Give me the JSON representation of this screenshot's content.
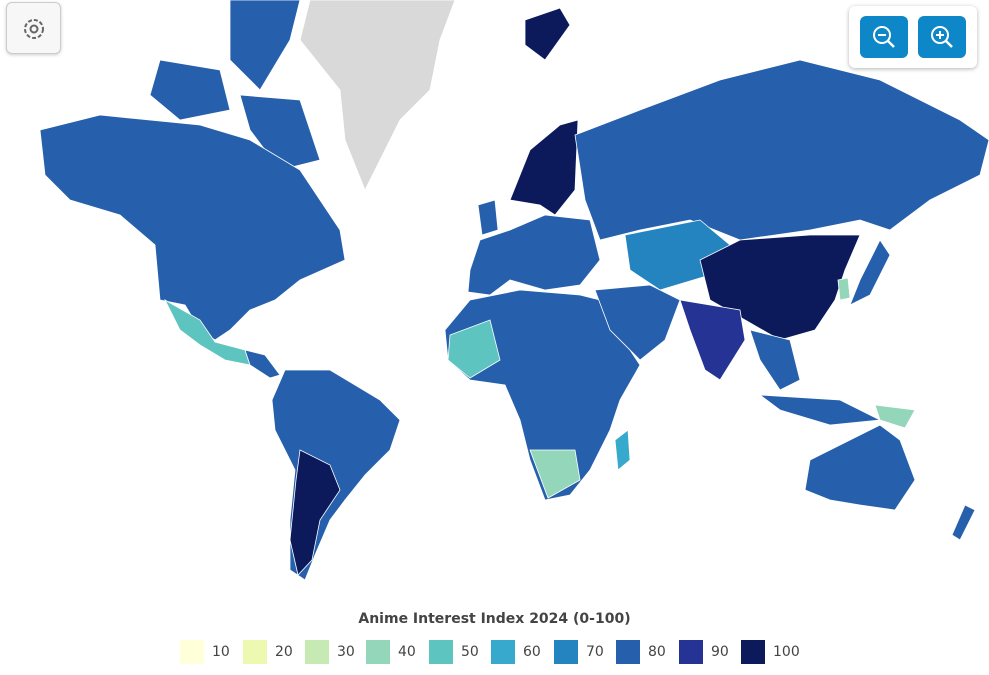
{
  "legend": {
    "title": "Anime Interest Index 2024 (0-100)",
    "items": [
      {
        "value": 10,
        "color": "#ffffd9"
      },
      {
        "value": 20,
        "color": "#edf8b1"
      },
      {
        "value": 30,
        "color": "#c7e9b4"
      },
      {
        "value": 40,
        "color": "#94d6b9"
      },
      {
        "value": 50,
        "color": "#5ec4c0"
      },
      {
        "value": 60,
        "color": "#36a9cc"
      },
      {
        "value": 70,
        "color": "#2384c0"
      },
      {
        "value": 80,
        "color": "#2660ac"
      },
      {
        "value": 90,
        "color": "#253494"
      },
      {
        "value": 100,
        "color": "#0c1a5c"
      }
    ]
  }
}
